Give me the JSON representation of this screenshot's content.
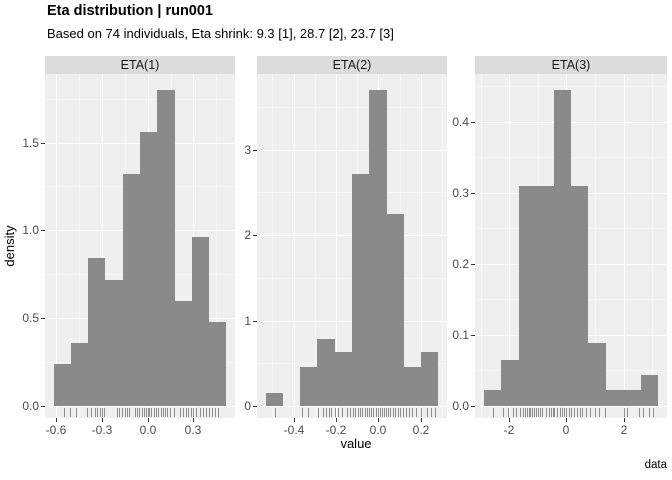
{
  "title": "Eta distribution | run001",
  "subtitle": "Based on 74 individuals, Eta shrink: 9.3 [1], 28.7 [2], 23.7 [3]",
  "y_axis_title": "density",
  "x_axis_title": "value",
  "caption": "data",
  "colors": {
    "panel_bg": "#EFEFEF",
    "strip_bg": "#DCDCDC",
    "bar_fill": "#8A8A8A",
    "grid_major": "#FFFFFF",
    "grid_minor": "#F6F6F6",
    "axis_text": "#4D4D4D",
    "tick_mark": "#333333",
    "rug": "#3C3C3C",
    "title_text": "#000000"
  },
  "chart_data": [
    {
      "facet": "ETA(1)",
      "type": "bar",
      "bin_start": -0.615,
      "bin_width": 0.113,
      "heights": [
        0.24,
        0.36,
        0.84,
        0.72,
        1.32,
        1.56,
        1.8,
        0.6,
        0.96,
        0.48
      ],
      "x_domain": [
        -0.672,
        0.572
      ],
      "y_domain": [
        0,
        1.89
      ],
      "x_tick_values": [
        -0.6,
        -0.3,
        0.0,
        0.3
      ],
      "x_tick_labels": [
        "-0.6",
        "-0.3",
        "0.0",
        "0.3"
      ],
      "x_minor": [
        -0.45,
        -0.15,
        0.15,
        0.45
      ],
      "y_tick_values": [
        0.0,
        0.5,
        1.0,
        1.5
      ],
      "y_tick_labels": [
        "0.0",
        "0.5",
        "1.0",
        "1.5"
      ],
      "y_minor": [
        0.25,
        0.75,
        1.25,
        1.75
      ],
      "rug": [
        -0.55,
        -0.51,
        -0.47,
        -0.4,
        -0.37,
        -0.345,
        -0.33,
        -0.315,
        -0.3,
        -0.285,
        -0.2,
        -0.185,
        -0.165,
        -0.15,
        -0.135,
        -0.12,
        -0.08,
        -0.07,
        -0.055,
        -0.04,
        -0.025,
        -0.01,
        0.0,
        0.012,
        0.025,
        0.04,
        0.055,
        0.07,
        0.085,
        0.1,
        0.115,
        0.13,
        0.145,
        0.17,
        0.21,
        0.23,
        0.25,
        0.265,
        0.285,
        0.3,
        0.315,
        0.345,
        0.36,
        0.38,
        0.4,
        0.42,
        0.44,
        0.46
      ]
    },
    {
      "facet": "ETA(2)",
      "type": "bar",
      "bin_start": -0.532,
      "bin_width": 0.0815,
      "heights": [
        0.15,
        0,
        0.46,
        0.78,
        0.63,
        2.72,
        3.7,
        2.25,
        0.46,
        0.63
      ],
      "x_domain": [
        -0.573,
        0.324
      ],
      "y_domain": [
        0,
        3.885
      ],
      "x_tick_values": [
        -0.4,
        -0.2,
        0.0,
        0.2
      ],
      "x_tick_labels": [
        "-0.4",
        "-0.2",
        "0.0",
        "0.2"
      ],
      "x_minor": [
        -0.5,
        -0.3,
        -0.1,
        0.1,
        0.3
      ],
      "y_tick_values": [
        0,
        1,
        2,
        3
      ],
      "y_tick_labels": [
        "0",
        "1",
        "2",
        "3"
      ],
      "y_minor": [
        0.5,
        1.5,
        2.5,
        3.5
      ],
      "rug": [
        -0.49,
        -0.36,
        -0.33,
        -0.285,
        -0.262,
        -0.248,
        -0.235,
        -0.222,
        -0.205,
        -0.19,
        -0.17,
        -0.148,
        -0.132,
        -0.12,
        -0.108,
        -0.097,
        -0.086,
        -0.075,
        -0.064,
        -0.053,
        -0.043,
        -0.033,
        -0.023,
        -0.013,
        -0.003,
        0.006,
        0.015,
        0.025,
        0.035,
        0.045,
        0.056,
        0.068,
        0.08,
        0.092,
        0.104,
        0.117,
        0.13,
        0.145,
        0.16,
        0.178,
        0.2,
        0.23,
        0.248,
        0.265
      ]
    },
    {
      "facet": "ETA(3)",
      "type": "bar",
      "bin_start": -2.89,
      "bin_width": 0.61,
      "heights": [
        0.022,
        0.065,
        0.31,
        0.31,
        0.445,
        0.31,
        0.088,
        0.022,
        0.022,
        0.044
      ],
      "x_domain": [
        -3.195,
        3.515
      ],
      "y_domain": [
        0,
        0.467
      ],
      "x_tick_values": [
        -2,
        0,
        2
      ],
      "x_tick_labels": [
        "-2",
        "0",
        "2"
      ],
      "x_minor": [
        -3,
        -1,
        1,
        3
      ],
      "y_tick_values": [
        0.0,
        0.1,
        0.2,
        0.3,
        0.4
      ],
      "y_tick_labels": [
        "0.0",
        "0.1",
        "0.2",
        "0.3",
        "0.4"
      ],
      "y_minor": [
        0.05,
        0.15,
        0.25,
        0.35,
        0.45
      ],
      "rug": [
        -2.55,
        -2.2,
        -2.05,
        -1.85,
        -1.75,
        -1.62,
        -1.52,
        -1.45,
        -1.38,
        -1.32,
        -1.26,
        -1.2,
        -1.14,
        -1.07,
        -1.0,
        -0.93,
        -0.85,
        -0.72,
        -0.62,
        -0.55,
        -0.48,
        -0.42,
        -0.33,
        -0.24,
        -0.16,
        -0.08,
        0.0,
        0.09,
        0.16,
        0.26,
        0.36,
        0.46,
        0.56,
        0.7,
        0.82,
        1.0,
        1.15,
        1.35,
        2.0,
        2.12,
        2.55,
        2.68,
        2.9,
        3.02
      ]
    }
  ]
}
